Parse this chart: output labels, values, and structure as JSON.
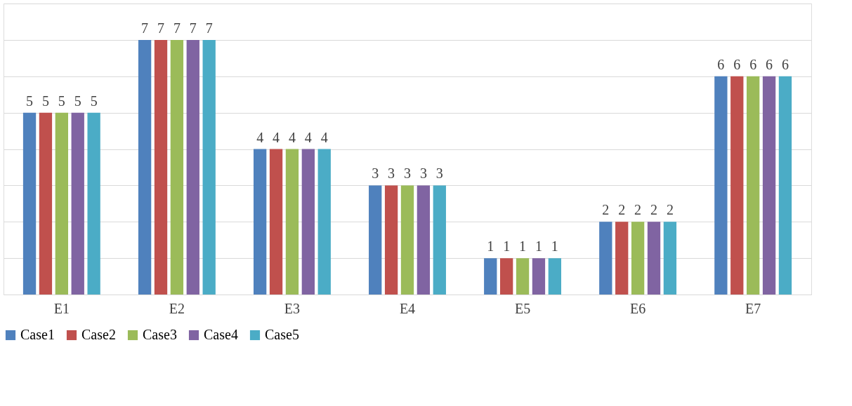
{
  "chart_data": {
    "type": "bar",
    "categories": [
      "E1",
      "E2",
      "E3",
      "E4",
      "E5",
      "E6",
      "E7"
    ],
    "series": [
      {
        "name": "Case1",
        "color": "#4f81bd",
        "values": [
          5,
          7,
          4,
          3,
          1,
          2,
          6
        ]
      },
      {
        "name": "Case2",
        "color": "#c0504d",
        "values": [
          5,
          7,
          4,
          3,
          1,
          2,
          6
        ]
      },
      {
        "name": "Case3",
        "color": "#9bbb59",
        "values": [
          5,
          7,
          4,
          3,
          1,
          2,
          6
        ]
      },
      {
        "name": "Case4",
        "color": "#8064a2",
        "values": [
          5,
          7,
          4,
          3,
          1,
          2,
          6
        ]
      },
      {
        "name": "Case5",
        "color": "#4bacc6",
        "values": [
          5,
          7,
          4,
          3,
          1,
          2,
          6
        ]
      }
    ],
    "ylim": [
      0,
      8
    ],
    "yticks": [
      {
        "value": 0,
        "label": null
      },
      {
        "value": 1,
        "label": null
      },
      {
        "value": 2,
        "label": null
      },
      {
        "value": 3,
        "label": null
      },
      {
        "value": 4,
        "label": null
      },
      {
        "value": 5,
        "label": null
      },
      {
        "value": 6,
        "label": null
      },
      {
        "value": 7,
        "label": null
      },
      {
        "value": 8,
        "label": null
      }
    ],
    "grid": "y",
    "legend": "bottom",
    "tick_labels": "x",
    "data_labels": true
  }
}
